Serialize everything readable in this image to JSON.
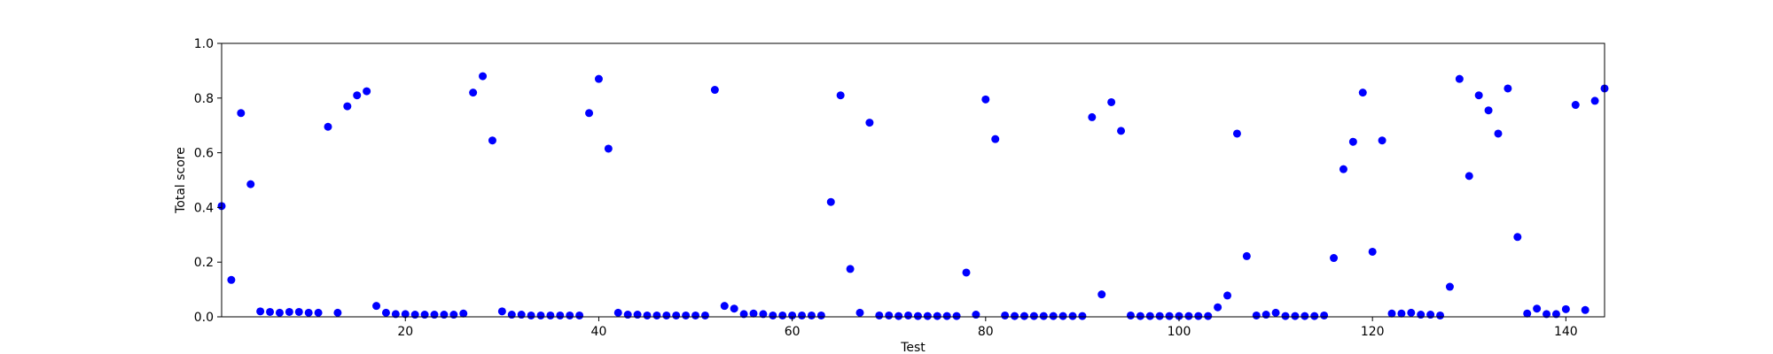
{
  "chart_data": {
    "type": "scatter",
    "title": "",
    "xlabel": "Test",
    "ylabel": "Total score",
    "xlim": [
      1,
      144
    ],
    "ylim": [
      0,
      1
    ],
    "x_ticks": [
      20,
      40,
      60,
      80,
      100,
      120,
      140
    ],
    "y_ticks": [
      0.0,
      0.2,
      0.4,
      0.6,
      0.8,
      1.0
    ],
    "y_tick_labels": [
      "0.0",
      "0.2",
      "0.4",
      "0.6",
      "0.8",
      "1.0"
    ],
    "grid": false,
    "marker_color": "#0000ff",
    "points": [
      [
        1,
        0.405
      ],
      [
        2,
        0.135
      ],
      [
        3,
        0.745
      ],
      [
        4,
        0.485
      ],
      [
        5,
        0.02
      ],
      [
        6,
        0.018
      ],
      [
        7,
        0.015
      ],
      [
        8,
        0.018
      ],
      [
        9,
        0.018
      ],
      [
        10,
        0.015
      ],
      [
        11,
        0.015
      ],
      [
        12,
        0.695
      ],
      [
        13,
        0.015
      ],
      [
        14,
        0.77
      ],
      [
        15,
        0.81
      ],
      [
        16,
        0.825
      ],
      [
        17,
        0.04
      ],
      [
        18,
        0.015
      ],
      [
        19,
        0.01
      ],
      [
        20,
        0.01
      ],
      [
        21,
        0.008
      ],
      [
        22,
        0.008
      ],
      [
        23,
        0.008
      ],
      [
        24,
        0.008
      ],
      [
        25,
        0.008
      ],
      [
        26,
        0.012
      ],
      [
        27,
        0.82
      ],
      [
        28,
        0.88
      ],
      [
        29,
        0.645
      ],
      [
        30,
        0.02
      ],
      [
        31,
        0.008
      ],
      [
        32,
        0.008
      ],
      [
        33,
        0.005
      ],
      [
        34,
        0.005
      ],
      [
        35,
        0.005
      ],
      [
        36,
        0.005
      ],
      [
        37,
        0.005
      ],
      [
        38,
        0.005
      ],
      [
        39,
        0.745
      ],
      [
        40,
        0.87
      ],
      [
        41,
        0.615
      ],
      [
        42,
        0.015
      ],
      [
        43,
        0.008
      ],
      [
        44,
        0.008
      ],
      [
        45,
        0.005
      ],
      [
        46,
        0.005
      ],
      [
        47,
        0.005
      ],
      [
        48,
        0.005
      ],
      [
        49,
        0.005
      ],
      [
        50,
        0.005
      ],
      [
        51,
        0.005
      ],
      [
        52,
        0.83
      ],
      [
        53,
        0.04
      ],
      [
        54,
        0.03
      ],
      [
        55,
        0.01
      ],
      [
        56,
        0.012
      ],
      [
        57,
        0.01
      ],
      [
        58,
        0.005
      ],
      [
        59,
        0.005
      ],
      [
        60,
        0.005
      ],
      [
        61,
        0.005
      ],
      [
        62,
        0.005
      ],
      [
        63,
        0.005
      ],
      [
        64,
        0.42
      ],
      [
        65,
        0.81
      ],
      [
        66,
        0.175
      ],
      [
        67,
        0.015
      ],
      [
        68,
        0.71
      ],
      [
        69,
        0.005
      ],
      [
        70,
        0.005
      ],
      [
        71,
        0.003
      ],
      [
        72,
        0.005
      ],
      [
        73,
        0.003
      ],
      [
        74,
        0.003
      ],
      [
        75,
        0.003
      ],
      [
        76,
        0.003
      ],
      [
        77,
        0.003
      ],
      [
        78,
        0.162
      ],
      [
        79,
        0.008
      ],
      [
        80,
        0.795
      ],
      [
        81,
        0.65
      ],
      [
        82,
        0.005
      ],
      [
        83,
        0.003
      ],
      [
        84,
        0.003
      ],
      [
        85,
        0.003
      ],
      [
        86,
        0.003
      ],
      [
        87,
        0.003
      ],
      [
        88,
        0.003
      ],
      [
        89,
        0.003
      ],
      [
        90,
        0.003
      ],
      [
        91,
        0.73
      ],
      [
        92,
        0.082
      ],
      [
        93,
        0.785
      ],
      [
        94,
        0.68
      ],
      [
        95,
        0.005
      ],
      [
        96,
        0.003
      ],
      [
        97,
        0.003
      ],
      [
        98,
        0.003
      ],
      [
        99,
        0.003
      ],
      [
        100,
        0.003
      ],
      [
        101,
        0.003
      ],
      [
        102,
        0.003
      ],
      [
        103,
        0.003
      ],
      [
        104,
        0.035
      ],
      [
        105,
        0.078
      ],
      [
        106,
        0.67
      ],
      [
        107,
        0.222
      ],
      [
        108,
        0.005
      ],
      [
        109,
        0.008
      ],
      [
        110,
        0.015
      ],
      [
        111,
        0.003
      ],
      [
        112,
        0.003
      ],
      [
        113,
        0.003
      ],
      [
        114,
        0.003
      ],
      [
        115,
        0.005
      ],
      [
        116,
        0.215
      ],
      [
        117,
        0.54
      ],
      [
        118,
        0.64
      ],
      [
        119,
        0.82
      ],
      [
        120,
        0.238
      ],
      [
        121,
        0.645
      ],
      [
        122,
        0.012
      ],
      [
        123,
        0.012
      ],
      [
        124,
        0.015
      ],
      [
        125,
        0.008
      ],
      [
        126,
        0.008
      ],
      [
        127,
        0.005
      ],
      [
        128,
        0.11
      ],
      [
        129,
        0.87
      ],
      [
        130,
        0.515
      ],
      [
        131,
        0.81
      ],
      [
        132,
        0.755
      ],
      [
        133,
        0.67
      ],
      [
        134,
        0.835
      ],
      [
        135,
        0.292
      ],
      [
        136,
        0.012
      ],
      [
        137,
        0.03
      ],
      [
        138,
        0.01
      ],
      [
        139,
        0.01
      ],
      [
        140,
        0.028
      ],
      [
        141,
        0.775
      ],
      [
        142,
        0.025
      ],
      [
        143,
        0.79
      ],
      [
        144,
        0.835
      ]
    ]
  }
}
